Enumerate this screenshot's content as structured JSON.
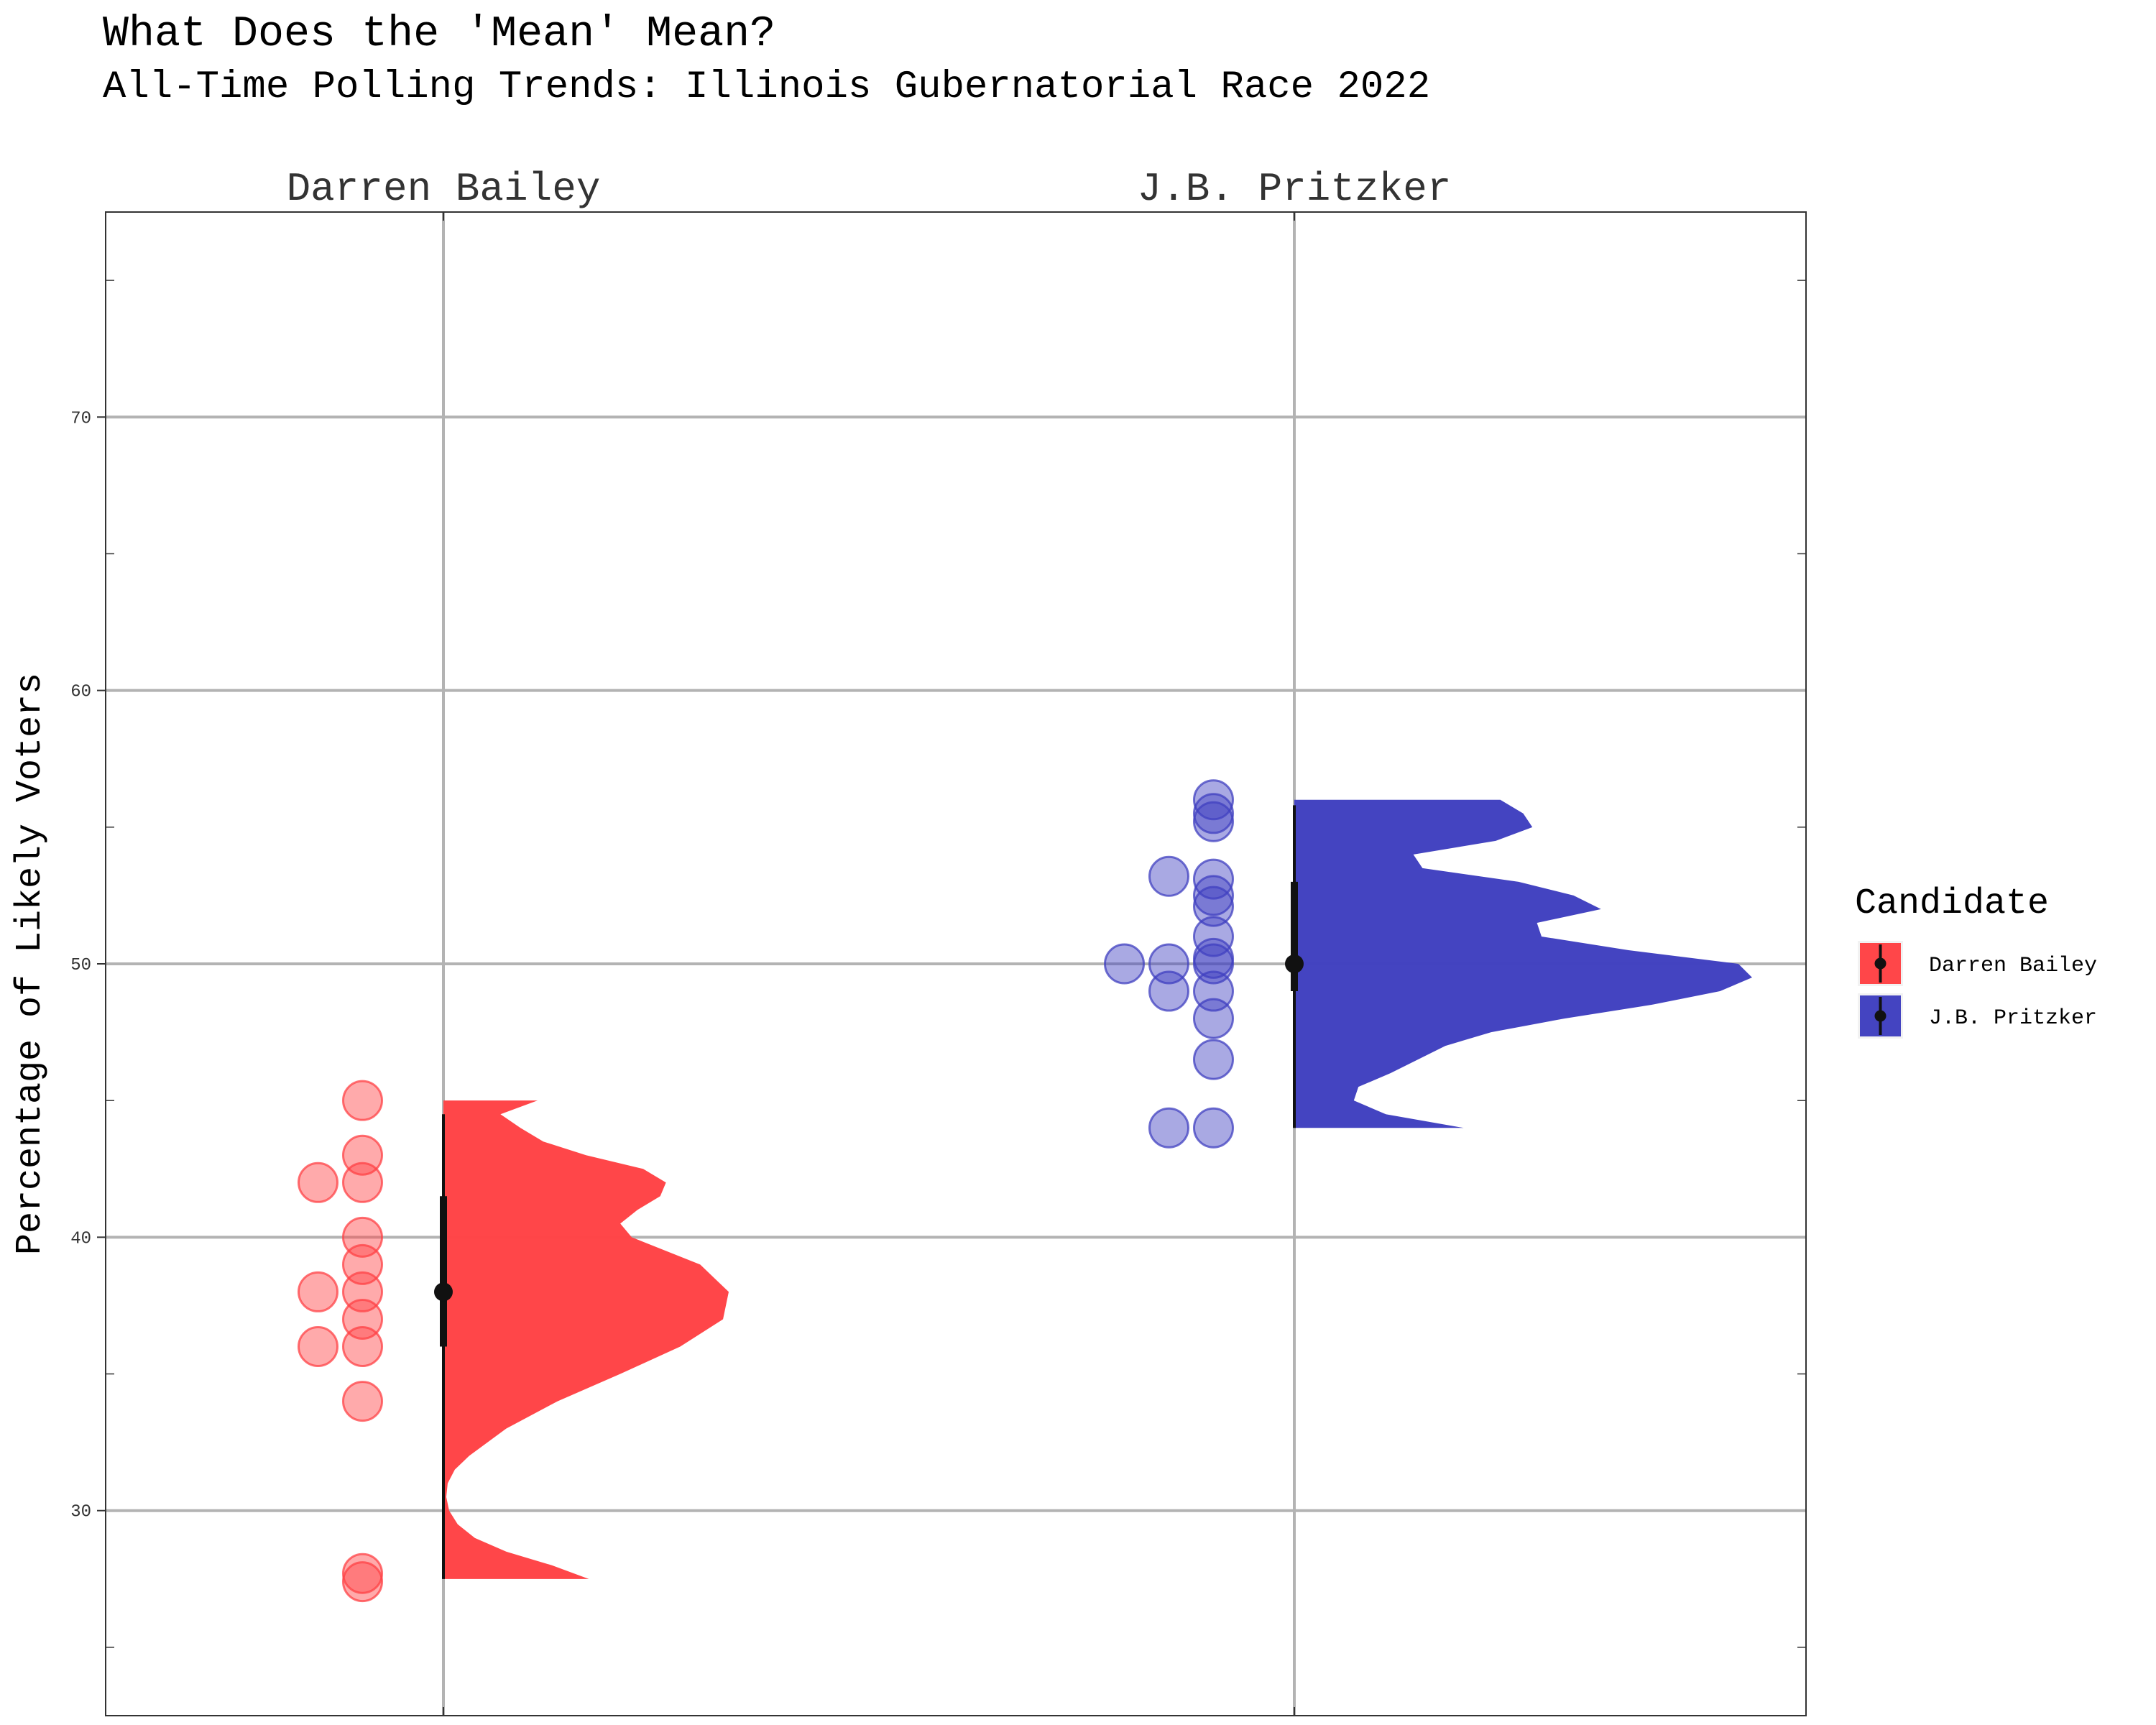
{
  "chart_data": {
    "type": "raincloud",
    "title": "What Does the 'Mean' Mean?",
    "subtitle": "All-Time Polling Trends: Illinois Gubernatorial Race 2022",
    "xlabel": "",
    "ylabel": "Percentage of Likely Voters",
    "ylim": [
      22.5,
      77.5
    ],
    "yticks": [
      30,
      40,
      50,
      60,
      70
    ],
    "grid": true,
    "legend": {
      "title": "Candidate",
      "position": "right",
      "items": [
        {
          "label": "Darren Bailey",
          "color": "#ff4245"
        },
        {
          "label": "J.B. Pritzker",
          "color": "#4040c0"
        }
      ]
    },
    "series": [
      {
        "name": "Darren Bailey",
        "color": "#ff4245",
        "points": [
          45,
          43,
          42,
          42,
          40,
          39,
          38,
          38,
          37,
          36,
          36,
          34,
          27.7,
          27.4
        ],
        "jitter": [
          1,
          1,
          1,
          2,
          1,
          1,
          1,
          2,
          1,
          1,
          2,
          1,
          1,
          1
        ],
        "mean": 38,
        "interval_inner": [
          36,
          41.5
        ],
        "interval_outer": [
          27.5,
          44.5
        ],
        "density": {
          "y": [
            27.5,
            28,
            28.5,
            29,
            29.5,
            30,
            30.5,
            31,
            31.5,
            32,
            33,
            34,
            35,
            36,
            37,
            38,
            39,
            40,
            40.5,
            41,
            41.5,
            42,
            42.5,
            43,
            43.5,
            44,
            44.5,
            45
          ],
          "d": [
            0.51,
            0.38,
            0.22,
            0.11,
            0.05,
            0.02,
            0.01,
            0.015,
            0.04,
            0.09,
            0.22,
            0.4,
            0.62,
            0.83,
            0.98,
            1.0,
            0.9,
            0.66,
            0.62,
            0.68,
            0.76,
            0.78,
            0.7,
            0.5,
            0.35,
            0.27,
            0.2,
            0.33
          ]
        }
      },
      {
        "name": "J.B. Pritzker",
        "color": "#4040c0",
        "points": [
          56,
          55.5,
          55.2,
          53.2,
          53.1,
          52.5,
          52.1,
          51,
          50.2,
          50,
          50,
          50,
          49,
          49,
          48,
          46.5,
          44,
          44
        ],
        "jitter": [
          1,
          1,
          1,
          2,
          1,
          1,
          1,
          1,
          1,
          1,
          2,
          3,
          1,
          2,
          1,
          1,
          1,
          2
        ],
        "mean": 50,
        "interval_inner": [
          49,
          53
        ],
        "interval_outer": [
          44,
          55.8
        ],
        "density": {
          "y": [
            44,
            44.5,
            45,
            45.5,
            46,
            46.5,
            47,
            47.5,
            48,
            48.5,
            49,
            49.5,
            50,
            50.5,
            51,
            51.5,
            52,
            52.5,
            53,
            53.5,
            54,
            54.5,
            55,
            55.5,
            56
          ],
          "d": [
            0.37,
            0.2,
            0.13,
            0.14,
            0.21,
            0.27,
            0.33,
            0.43,
            0.59,
            0.78,
            0.93,
            1.0,
            0.97,
            0.73,
            0.54,
            0.53,
            0.67,
            0.61,
            0.49,
            0.28,
            0.26,
            0.44,
            0.52,
            0.5,
            0.45
          ]
        }
      }
    ]
  }
}
